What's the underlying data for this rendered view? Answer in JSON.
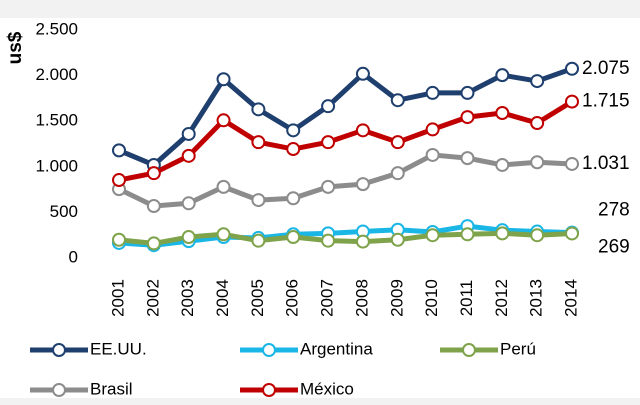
{
  "chart_data": {
    "type": "line",
    "y_label": "us$",
    "categories": [
      "2001",
      "2002",
      "2003",
      "2004",
      "2005",
      "2006",
      "2007",
      "2008",
      "2009",
      "2010",
      "2011",
      "2012",
      "2013",
      "2014"
    ],
    "ylim": [
      0,
      2500
    ],
    "yticks": [
      0,
      500,
      {
        "value": 1000,
        "label": "1.000"
      },
      {
        "value": 1500,
        "label": "1.500"
      },
      {
        "value": 2000,
        "label": "2.000"
      },
      {
        "value": 2500,
        "label": "2.500"
      }
    ],
    "series": [
      {
        "name": "EE.UU.",
        "color": "#1f3f6e",
        "values": [
          1180,
          1020,
          1360,
          1960,
          1630,
          1400,
          1665,
          2020,
          1730,
          1810,
          1810,
          2005,
          1940,
          2075
        ],
        "value_labels": [
          null,
          null,
          null,
          null,
          null,
          null,
          null,
          null,
          null,
          null,
          null,
          null,
          null,
          "2.075"
        ]
      },
      {
        "name": "Argentina",
        "color": "#1ab6e6",
        "values": [
          165,
          140,
          185,
          230,
          220,
          260,
          270,
          290,
          310,
          285,
          350,
          305,
          290,
          278
        ]
      },
      {
        "name": "Perú",
        "color": "#7ea34a",
        "values": [
          200,
          160,
          230,
          260,
          190,
          230,
          190,
          180,
          200,
          250,
          260,
          270,
          250,
          269
        ]
      },
      {
        "name": "Brasil",
        "color": "#8c8c8c",
        "values": [
          755,
          570,
          600,
          780,
          635,
          655,
          780,
          810,
          930,
          1130,
          1095,
          1020,
          1050,
          1031
        ],
        "value_labels": [
          null,
          null,
          null,
          null,
          null,
          null,
          null,
          null,
          null,
          null,
          null,
          null,
          null,
          "1.031"
        ]
      },
      {
        "name": "México",
        "color": "#c00000",
        "values": [
          855,
          930,
          1120,
          1510,
          1270,
          1195,
          1270,
          1400,
          1270,
          1410,
          1545,
          1590,
          1480,
          1715
        ],
        "value_labels": [
          null,
          null,
          null,
          null,
          null,
          null,
          null,
          null,
          null,
          null,
          null,
          null,
          null,
          "1.715"
        ]
      }
    ]
  }
}
